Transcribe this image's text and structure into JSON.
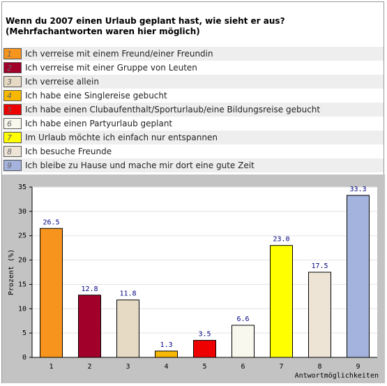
{
  "chart_data": {
    "type": "bar",
    "title": "Wenn du 2007 einen Urlaub geplant hast, wie sieht er aus? (Mehrfachantworten waren hier möglich)",
    "categories": [
      "1",
      "2",
      "3",
      "4",
      "5",
      "6",
      "7",
      "8",
      "9"
    ],
    "labels": [
      "Ich verreise mit einem Freund/einer Freundin",
      "Ich verreise mit einer Gruppe von Leuten",
      "Ich verreise allein",
      "Ich habe eine Singlereise gebucht",
      "Ich habe einen Clubaufenthalt/Sporturlaub/eine Bildungsreise gebucht",
      "Ich habe einen Partyurlaub geplant",
      "Im Urlaub möchte ich einfach nur entspannen",
      "Ich besuche Freunde",
      "Ich bleibe zu Hause und mache mir dort eine gute Zeit"
    ],
    "values": [
      26.5,
      12.8,
      11.8,
      1.3,
      3.5,
      6.6,
      23.0,
      17.5,
      33.3
    ],
    "value_labels": [
      "26.5",
      "12.8",
      "11.8",
      "1.3",
      "3.5",
      "6.6",
      "23.0",
      "17.5",
      "33.3"
    ],
    "colors": [
      "#f7941d",
      "#a0002a",
      "#e6dac4",
      "#f6b800",
      "#ee0000",
      "#f8f8ee",
      "#ffff00",
      "#ede4d6",
      "#a3b3de"
    ],
    "ylabel": "Prozent (%)",
    "xlabel": "Antwortmöglichkeiten",
    "ylim": [
      0,
      35
    ],
    "yticks": [
      0,
      5,
      10,
      15,
      20,
      25,
      30,
      35
    ],
    "grid": true
  }
}
